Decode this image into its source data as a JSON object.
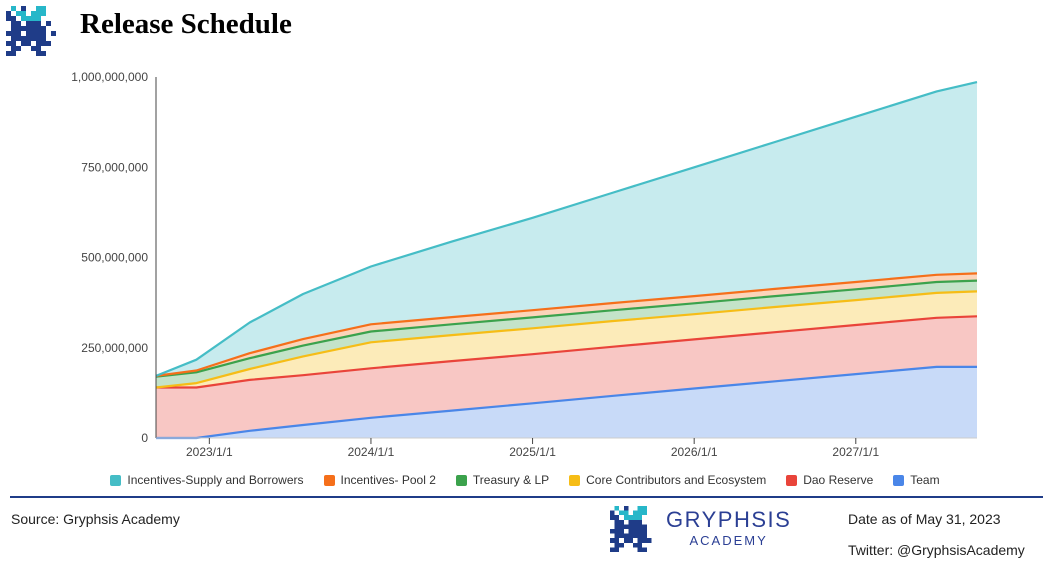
{
  "header": {
    "title": "Release Schedule"
  },
  "chart_data": {
    "type": "area",
    "stacked": true,
    "x_ticks": [
      "2023/1/1",
      "2024/1/1",
      "2025/1/1",
      "2026/1/1",
      "2027/1/1"
    ],
    "x_tick_values": [
      2023.0,
      2024.0,
      2025.0,
      2026.0,
      2027.0
    ],
    "x_range": [
      2022.67,
      2027.75
    ],
    "y_range": [
      0,
      1000000000
    ],
    "y_ticks": [
      0,
      250000000,
      500000000,
      750000000,
      1000000000
    ],
    "y_tick_labels": [
      "0",
      "250,000,000",
      "500,000,000",
      "750,000,000",
      "1,000,000,000"
    ],
    "x": [
      2022.67,
      2022.92,
      2023.25,
      2023.58,
      2024.0,
      2024.5,
      2025.0,
      2025.5,
      2026.0,
      2026.5,
      2027.0,
      2027.5,
      2027.75
    ],
    "series": [
      {
        "name": "Team",
        "color": "#4a86e8",
        "values": [
          0,
          0,
          20000000,
          36000000,
          56000000,
          76000000,
          96000000,
          117000000,
          137000000,
          157000000,
          177000000,
          197000000,
          197000000
        ]
      },
      {
        "name": "Dao Reserve",
        "color": "#e9443a",
        "values": [
          140000000,
          140000000,
          141000000,
          138000000,
          137000000,
          137000000,
          136000000,
          136000000,
          136000000,
          136000000,
          136000000,
          136000000,
          140000000
        ]
      },
      {
        "name": "Core Contributors and Ecosystem",
        "color": "#f6bd16",
        "values": [
          0,
          12000000,
          30000000,
          52000000,
          72000000,
          72000000,
          72000000,
          71000000,
          70000000,
          70000000,
          69000000,
          69000000,
          69000000
        ]
      },
      {
        "name": "Treasury & LP",
        "color": "#3ba24c",
        "values": [
          30000000,
          30000000,
          30000000,
          30000000,
          30000000,
          30000000,
          30000000,
          30000000,
          30000000,
          30000000,
          30000000,
          30000000,
          30000000
        ]
      },
      {
        "name": "Incentives- Pool 2",
        "color": "#f56f1a",
        "values": [
          2000000,
          5000000,
          14000000,
          18000000,
          20000000,
          20000000,
          20000000,
          20000000,
          20000000,
          20000000,
          20000000,
          20000000,
          20000000
        ]
      },
      {
        "name": "Incentives-Supply and Borrowers",
        "color": "#45bdc6",
        "values": [
          0,
          30000000,
          85000000,
          125000000,
          160000000,
          209000000,
          256000000,
          306000000,
          357000000,
          407000000,
          458000000,
          508000000,
          530000000
        ]
      }
    ],
    "legend_order": [
      "Incentives-Supply and Borrowers",
      "Incentives- Pool 2",
      "Treasury & LP",
      "Core Contributors and Ecosystem",
      "Dao Reserve",
      "Team"
    ],
    "legend_position": "bottom-center",
    "title": "Release Schedule"
  },
  "footer": {
    "source": "Source: Gryphsis Academy",
    "brand_name": "GRYPHSIS",
    "brand_sub": "ACADEMY",
    "date_note": "Date as of May 31, 2023",
    "twitter": "Twitter: @GryphsisAcademy"
  }
}
